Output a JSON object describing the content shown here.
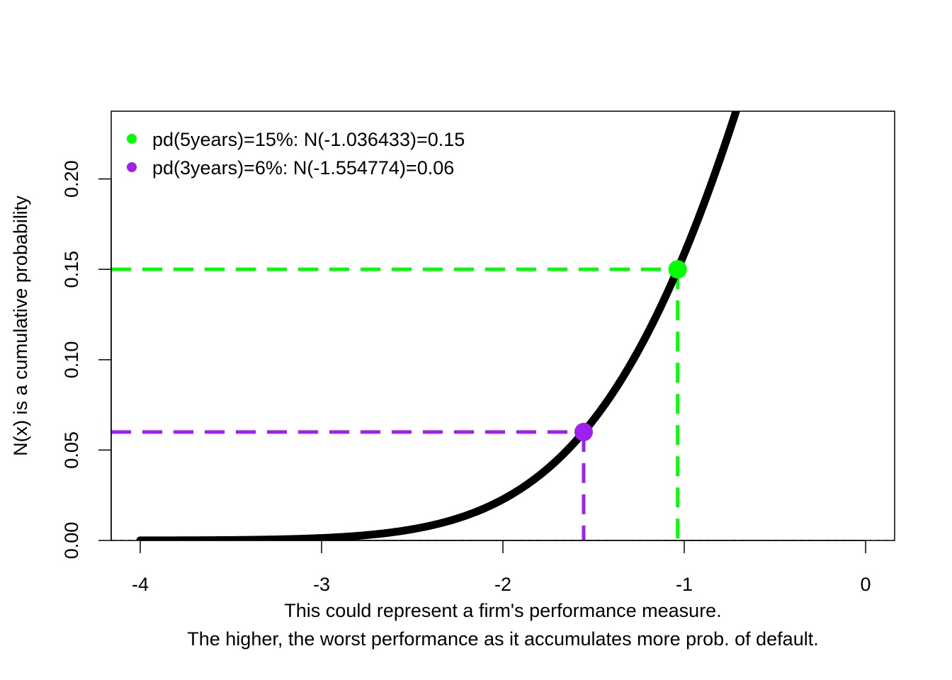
{
  "chart_data": {
    "type": "line",
    "xlabel_lines": [
      "This could represent a firm's performance measure.",
      "The higher, the worst performance as it accumulates more prob. of default."
    ],
    "ylabel": "N(x) is a cumulative probability",
    "xlim": [
      -4.16,
      0.16
    ],
    "ylim": [
      0.0,
      0.2375
    ],
    "x_ticks": [
      -4,
      -3,
      -2,
      -1,
      0
    ],
    "x_tick_labels": [
      "-4",
      "-3",
      "-2",
      "-1",
      "0"
    ],
    "y_ticks": [
      0.0,
      0.05,
      0.1,
      0.15,
      0.2
    ],
    "y_tick_labels": [
      "0.00",
      "0.05",
      "0.10",
      "0.15",
      "0.20"
    ],
    "curve": {
      "function": "standard normal CDF",
      "x_range": [
        -4,
        0
      ],
      "color": "#000000"
    },
    "reference_line": {
      "y": 0,
      "style": "dashed",
      "color": "#000000"
    },
    "highlight_points": [
      {
        "legend": "pd(5years)=15%: N(-1.036433)=0.15",
        "x": -1.036433,
        "y": 0.15,
        "color": "#00ff00"
      },
      {
        "legend": "pd(3years)=6%: N(-1.554774)=0.06",
        "x": -1.554774,
        "y": 0.06,
        "color": "#a020f0"
      }
    ],
    "legend_position": "top-left",
    "grid": false
  }
}
